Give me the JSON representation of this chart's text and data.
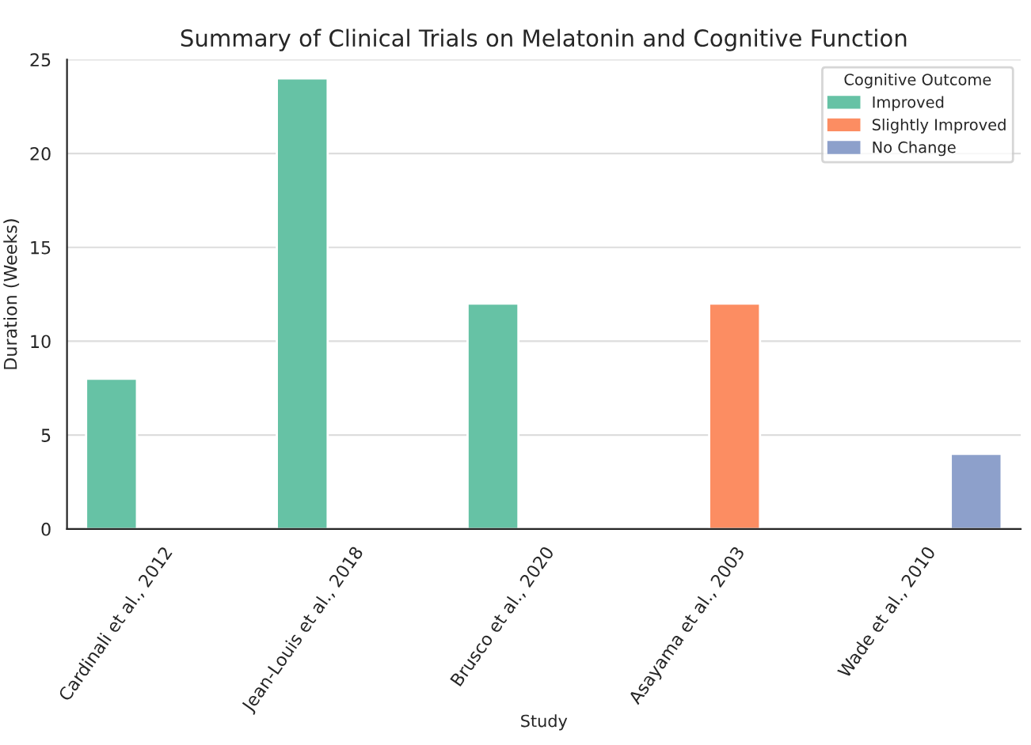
{
  "chart_data": {
    "type": "bar",
    "title": "Summary of Clinical Trials on Melatonin and Cognitive Function",
    "xlabel": "Study",
    "ylabel": "Duration (Weeks)",
    "legend_title": "Cognitive Outcome",
    "categories": [
      "Cardinali et al., 2012",
      "Jean-Louis et al., 2018",
      "Brusco et al., 2020",
      "Asayama et al., 2003",
      "Wade et al., 2010"
    ],
    "series": [
      {
        "name": "Improved",
        "color": "#66c2a5",
        "values": [
          8,
          24,
          12,
          null,
          null
        ]
      },
      {
        "name": "Slightly Improved",
        "color": "#fc8d62",
        "values": [
          null,
          null,
          null,
          12,
          null
        ]
      },
      {
        "name": "No Change",
        "color": "#8da0cb",
        "values": [
          null,
          null,
          null,
          null,
          4
        ]
      }
    ],
    "ylim": [
      0,
      25
    ],
    "yticks": [
      0,
      5,
      10,
      15,
      20,
      25
    ],
    "grid": "y",
    "legend": "top right"
  }
}
